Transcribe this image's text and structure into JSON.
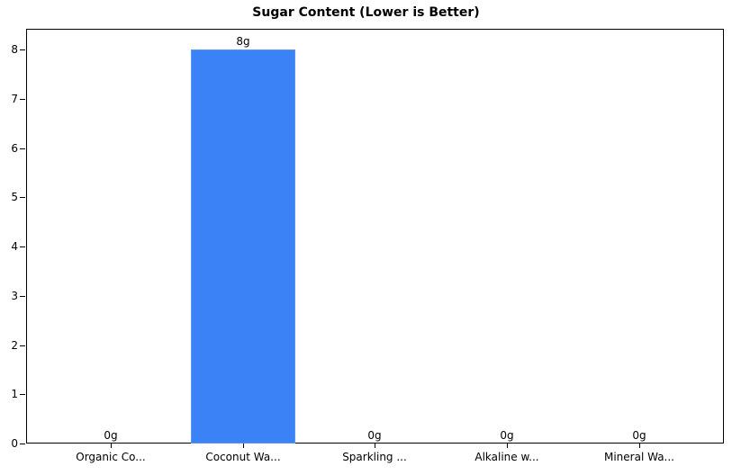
{
  "chart_data": {
    "type": "bar",
    "title": "Sugar Content (Lower is Better)",
    "categories": [
      "Organic Co...",
      "Coconut Wa...",
      "Sparkling ...",
      "Alkaline w...",
      "Mineral Wa..."
    ],
    "values": [
      0,
      8,
      0,
      0,
      0
    ],
    "value_labels": [
      "0g",
      "8g",
      "0g",
      "0g",
      "0g"
    ],
    "xlabel": "",
    "ylabel": "",
    "ylim": [
      0,
      8.4
    ],
    "yticks": [
      "0",
      "1",
      "2",
      "3",
      "4",
      "5",
      "6",
      "7",
      "8"
    ],
    "grid": false,
    "bar_color": "#3b82f6"
  }
}
